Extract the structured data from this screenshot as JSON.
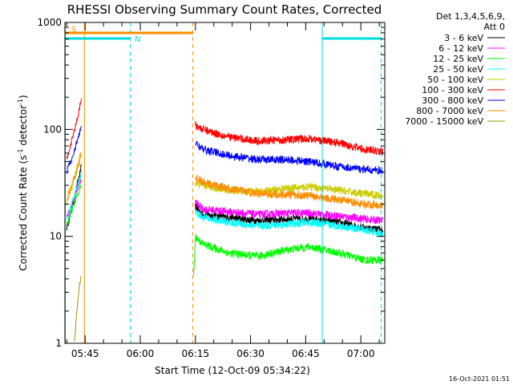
{
  "chart_data": {
    "type": "line",
    "title": "RHESSI Observing Summary Count Rates, Corrected",
    "xlabel": "Start Time (12-Oct-09 05:34:22)",
    "ylabel_parts": {
      "pre": "Corrected Count Rate (s",
      "sup1": "-1",
      "mid": " detector",
      "sup2": "-1",
      "post": ")"
    },
    "y_scale": "log",
    "ylim": [
      1,
      1000
    ],
    "y_ticks": [
      {
        "value": 1,
        "label": "1"
      },
      {
        "value": 10,
        "label": "10"
      },
      {
        "value": 100,
        "label": "100"
      },
      {
        "value": 1000,
        "label": "1000"
      }
    ],
    "x_range_min": [
      5.5,
      92.5
    ],
    "x_ticks": [
      {
        "value": 11,
        "label": "05:45"
      },
      {
        "value": 26,
        "label": "06:00"
      },
      {
        "value": 41,
        "label": "06:15"
      },
      {
        "value": 56,
        "label": "06:30"
      },
      {
        "value": 71,
        "label": "06:45"
      },
      {
        "value": 86,
        "label": "07:00"
      }
    ],
    "legend_header": [
      "Det 1,3,4,5,6,9,",
      "Att 0"
    ],
    "series": [
      {
        "name": "3 - 6 keV",
        "color": "#000000",
        "seg1": [
          [
            6,
            12
          ],
          [
            7,
            16
          ],
          [
            8,
            22
          ],
          [
            9,
            32
          ],
          [
            10,
            45
          ]
        ],
        "seg2": [
          [
            41,
            19
          ],
          [
            43,
            16
          ],
          [
            50,
            15
          ],
          [
            58,
            14
          ],
          [
            66,
            14.5
          ],
          [
            72,
            14.5
          ],
          [
            80,
            13.5
          ],
          [
            87,
            12
          ],
          [
            92,
            11.5
          ]
        ]
      },
      {
        "name": "6 - 12 keV",
        "color": "#ff00ff",
        "seg1": [
          [
            6,
            15
          ],
          [
            7,
            18
          ],
          [
            8,
            22
          ],
          [
            9,
            28
          ],
          [
            10,
            35
          ]
        ],
        "seg2": [
          [
            41,
            21
          ],
          [
            43,
            18
          ],
          [
            50,
            17
          ],
          [
            58,
            16
          ],
          [
            66,
            16.5
          ],
          [
            72,
            16.5
          ],
          [
            80,
            15.5
          ],
          [
            87,
            14.5
          ],
          [
            92,
            14
          ]
        ]
      },
      {
        "name": "12 - 25 keV",
        "color": "#00ff00",
        "seg1": [
          [
            6,
            13
          ],
          [
            7,
            16
          ],
          [
            8,
            20
          ],
          [
            9,
            25
          ],
          [
            10,
            30
          ]
        ],
        "seg2": [
          [
            40.5,
            4
          ],
          [
            41,
            10
          ],
          [
            43,
            8.5
          ],
          [
            50,
            7
          ],
          [
            58,
            6.5
          ],
          [
            66,
            7.5
          ],
          [
            72,
            8
          ],
          [
            80,
            7
          ],
          [
            87,
            6
          ],
          [
            92,
            6
          ]
        ]
      },
      {
        "name": "25 - 50 keV",
        "color": "#00ffff",
        "seg1": [
          [
            6,
            14
          ],
          [
            7,
            18
          ],
          [
            8,
            23
          ],
          [
            9,
            30
          ],
          [
            10,
            40
          ]
        ],
        "seg2": [
          [
            41,
            17
          ],
          [
            43,
            15
          ],
          [
            50,
            13.5
          ],
          [
            58,
            12.5
          ],
          [
            66,
            13
          ],
          [
            72,
            13.5
          ],
          [
            80,
            12.5
          ],
          [
            87,
            11.5
          ],
          [
            92,
            10.5
          ]
        ]
      },
      {
        "name": "50 - 100 keV",
        "color": "#cccc00",
        "seg1": [
          [
            6,
            20
          ],
          [
            7,
            26
          ],
          [
            8,
            33
          ],
          [
            9,
            42
          ],
          [
            10,
            55
          ]
        ],
        "seg2": [
          [
            41,
            32
          ],
          [
            43,
            30
          ],
          [
            50,
            27
          ],
          [
            58,
            26
          ],
          [
            66,
            28
          ],
          [
            72,
            29
          ],
          [
            80,
            27
          ],
          [
            87,
            25
          ],
          [
            92,
            24
          ]
        ]
      },
      {
        "name": "100 - 300 keV",
        "color": "#ff0000",
        "seg1": [
          [
            6,
            55
          ],
          [
            7,
            70
          ],
          [
            8,
            95
          ],
          [
            9,
            130
          ],
          [
            10,
            200
          ]
        ],
        "seg2": [
          [
            41,
            110
          ],
          [
            43,
            100
          ],
          [
            50,
            85
          ],
          [
            58,
            78
          ],
          [
            66,
            80
          ],
          [
            72,
            82
          ],
          [
            80,
            75
          ],
          [
            87,
            65
          ],
          [
            92,
            62
          ]
        ]
      },
      {
        "name": "300 - 800 keV",
        "color": "#0000ff",
        "seg1": [
          [
            6,
            40
          ],
          [
            7,
            50
          ],
          [
            8,
            62
          ],
          [
            9,
            80
          ],
          [
            10,
            110
          ]
        ],
        "seg2": [
          [
            41,
            75
          ],
          [
            43,
            65
          ],
          [
            50,
            57
          ],
          [
            58,
            52
          ],
          [
            66,
            52
          ],
          [
            72,
            50
          ],
          [
            80,
            45
          ],
          [
            87,
            42
          ],
          [
            92,
            41
          ]
        ]
      },
      {
        "name": "800 - 7000 keV",
        "color": "#ff8c00",
        "seg1": [
          [
            6,
            22
          ],
          [
            7,
            28
          ],
          [
            8,
            35
          ],
          [
            9,
            48
          ],
          [
            10,
            60
          ]
        ],
        "seg2": [
          [
            41,
            36
          ],
          [
            43,
            32
          ],
          [
            50,
            28
          ],
          [
            58,
            25
          ],
          [
            66,
            24.5
          ],
          [
            72,
            24
          ],
          [
            80,
            22
          ],
          [
            87,
            20
          ],
          [
            92,
            19.5
          ]
        ]
      },
      {
        "name": "7000 - 15000 keV",
        "color": "#999900",
        "seg1": [
          [
            8,
            1
          ],
          [
            8.5,
            1.5
          ],
          [
            9,
            2.5
          ],
          [
            9.5,
            3.5
          ],
          [
            10,
            4.5
          ]
        ],
        "seg2": []
      }
    ],
    "vertical_markers": [
      {
        "x": 5.6,
        "color": "#00dddd",
        "style": "solid"
      },
      {
        "x": 10.8,
        "color": "#ff8c00",
        "style": "solid"
      },
      {
        "x": 23.3,
        "color": "#00dddd",
        "style": "dashed"
      },
      {
        "x": 40.3,
        "color": "#ff8c00",
        "style": "dashed"
      },
      {
        "x": 75.5,
        "color": "#00dddd",
        "style": "solid"
      },
      {
        "x": 91.5,
        "color": "#00dddd",
        "style": "dashed"
      }
    ],
    "flag_bars": [
      {
        "label": "S",
        "color": "#ff8c00",
        "x0": 5.6,
        "x1": 40.3,
        "label_x": 7.2
      },
      {
        "label": "N",
        "color": "#00dddd",
        "x0": 5.6,
        "x1": 23.3,
        "label_x": 24.5
      },
      {
        "label": "",
        "color": "#00dddd",
        "x0": 75.5,
        "x1": 91.5,
        "label_x": 75.5
      }
    ],
    "footer_date": "16-Oct-2021 01:51"
  }
}
